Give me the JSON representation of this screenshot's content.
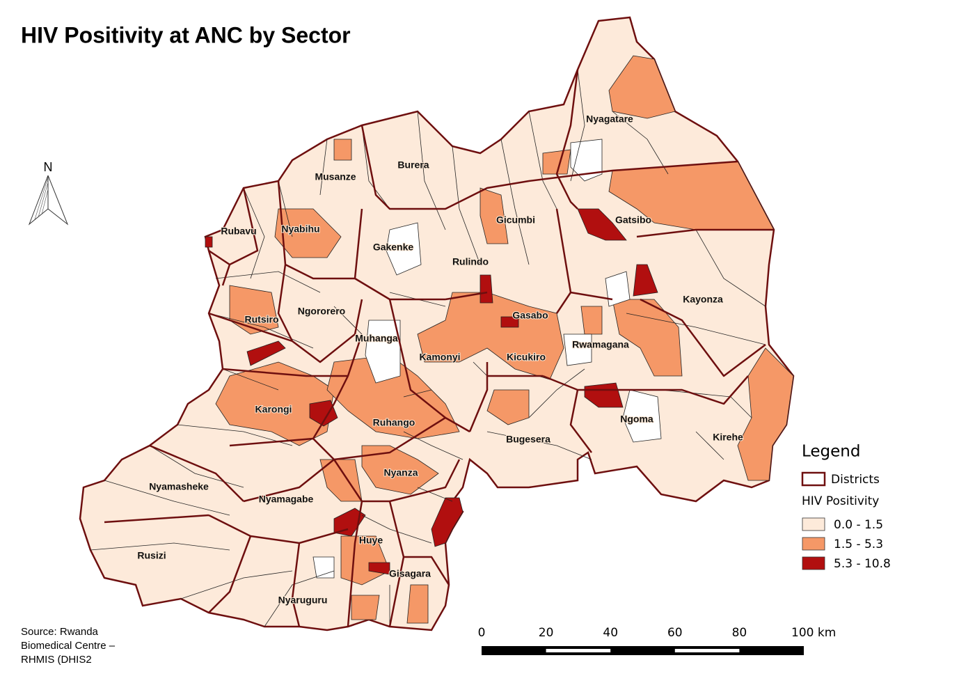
{
  "title": "HIV Positivity at ANC by Sector",
  "north": "N",
  "districts": [
    "Nyagatare",
    "Burera",
    "Musanze",
    "Gicumbi",
    "Gatsibo",
    "Rubavu",
    "Nyabihu",
    "Gakenke",
    "Rulindo",
    "Kayonza",
    "Ngororero",
    "Gasabo",
    "Rutsiro",
    "Muhanga",
    "Rwamagana",
    "Kamonyi",
    "Kicukiro",
    "Karongi",
    "Ruhango",
    "Ngoma",
    "Bugesera",
    "Kirehe",
    "Nyanza",
    "Nyamasheke",
    "Nyamagabe",
    "Huye",
    "Rusizi",
    "Gisagara",
    "Nyaruguru"
  ],
  "legend": {
    "title": "Legend",
    "districts_label": "Districts",
    "variable": "HIV Positivity",
    "classes": [
      {
        "label": "0.0 - 1.5",
        "color": "#fdeada"
      },
      {
        "label": "1.5 - 5.3",
        "color": "#f59867"
      },
      {
        "label": "5.3 - 10.8",
        "color": "#b10f0f"
      }
    ]
  },
  "scale_bar": [
    "0",
    "20",
    "40",
    "60",
    "80",
    "100 km"
  ],
  "source": [
    "Source: Rwanda",
    "Biomedical Centre –",
    "RHMIS (DHIS2"
  ]
}
